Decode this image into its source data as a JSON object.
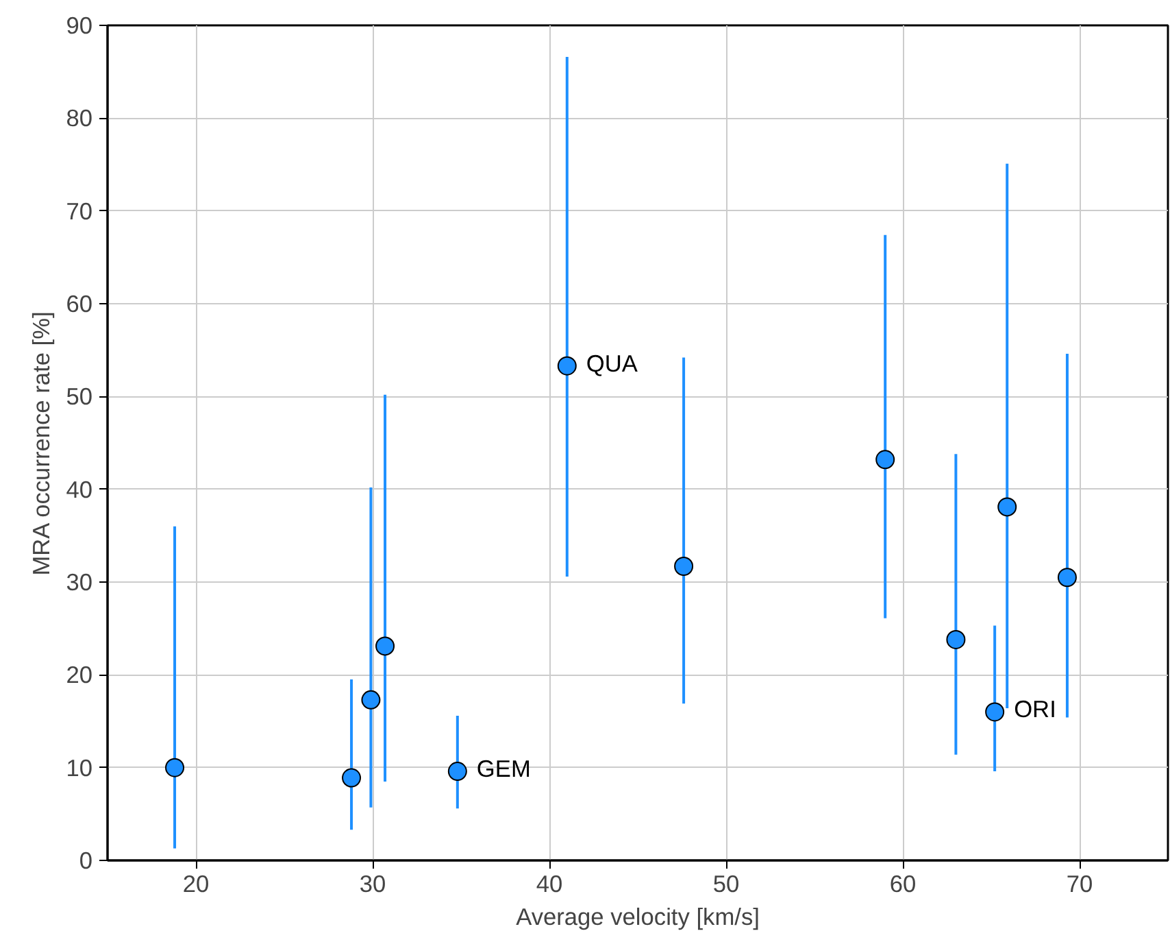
{
  "chart_data": {
    "type": "scatter",
    "xlabel": "Average velocity [km/s]",
    "ylabel": "MRA occurrence rate [%]",
    "x": [
      18.8,
      28.8,
      29.9,
      30.7,
      34.8,
      41.0,
      47.6,
      59.0,
      63.0,
      65.2,
      65.9,
      69.3
    ],
    "series": [
      {
        "color": "#1e90ff",
        "values": [
          10.0,
          8.9,
          17.3,
          23.1,
          9.6,
          53.3,
          31.7,
          43.2,
          23.8,
          16.0,
          38.1,
          30.5
        ],
        "errors": [
          [
            1.3,
            36.0
          ],
          [
            3.3,
            19.5
          ],
          [
            5.7,
            40.2
          ],
          [
            8.5,
            50.2
          ],
          [
            5.6,
            15.6
          ],
          [
            30.6,
            86.6
          ],
          [
            16.9,
            54.2
          ],
          [
            26.1,
            67.4
          ],
          [
            11.4,
            43.8
          ],
          [
            9.6,
            25.3
          ],
          [
            16.4,
            75.1
          ],
          [
            15.4,
            54.6
          ]
        ]
      }
    ],
    "annotations": [
      {
        "text": "GEM",
        "x": 34.8,
        "y": 9.6
      },
      {
        "text": "QUA",
        "x": 41.0,
        "y": 53.3
      },
      {
        "text": "ORI",
        "x": 65.2,
        "y": 16.0
      }
    ],
    "xlim": [
      15,
      75
    ],
    "ylim": [
      0,
      90
    ],
    "xticks": [
      20,
      30,
      40,
      50,
      60,
      70
    ],
    "yticks": [
      0,
      10,
      20,
      30,
      40,
      50,
      60,
      70,
      80,
      90
    ],
    "grid": true,
    "marker": "circle"
  }
}
